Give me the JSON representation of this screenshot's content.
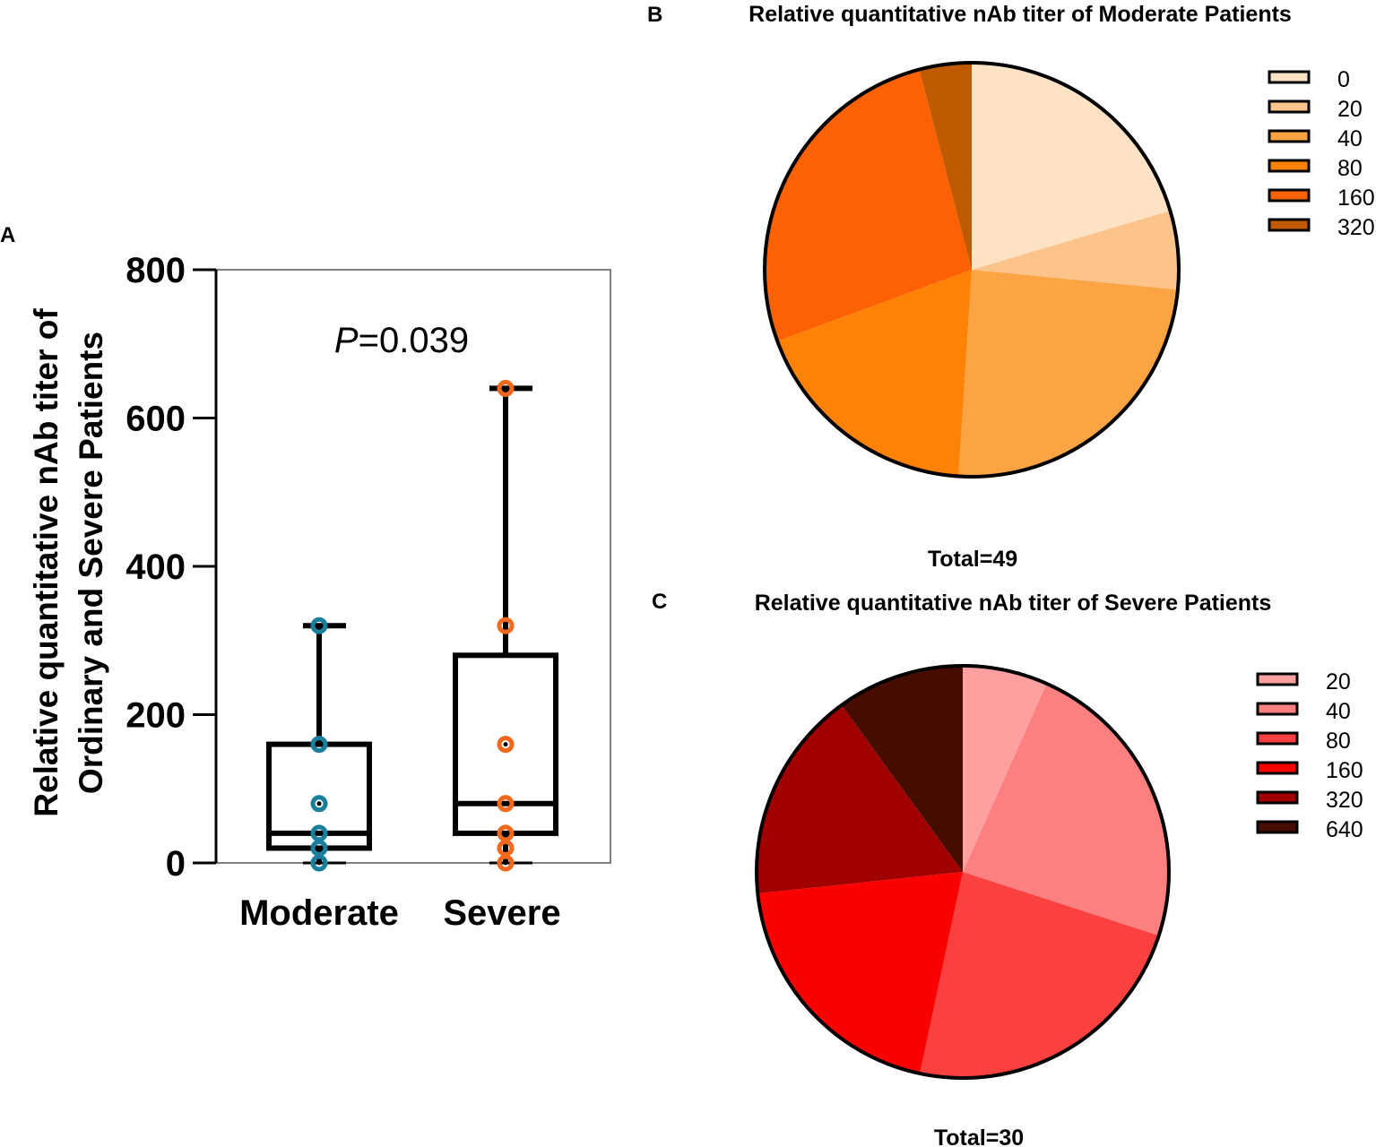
{
  "panels": {
    "a": "A",
    "b": "B",
    "c": "C"
  },
  "chart_data": [
    {
      "type": "box",
      "panel": "A",
      "ylabel": "Relative quantitative nAb titer of Ordinary and Severe Patients",
      "ylabel_lines": [
        "Relative quantitative nAb titer of",
        "Ordinary and Severe Patients"
      ],
      "annotation": {
        "prefix": "P",
        "value": "=0.039"
      },
      "ylim": [
        0,
        800
      ],
      "yticks": [
        0,
        200,
        400,
        600,
        800
      ],
      "categories": [
        "Moderate",
        "Severe"
      ],
      "colors": {
        "Moderate": "#1a7f9c",
        "Severe": "#f2681c"
      },
      "boxes": [
        {
          "name": "Moderate",
          "min": 0,
          "q1": 20,
          "median": 40,
          "q3": 160,
          "max": 320,
          "points": [
            0,
            20,
            40,
            80,
            160,
            320
          ]
        },
        {
          "name": "Severe",
          "min": 0,
          "q1": 40,
          "median": 80,
          "q3": 280,
          "max": 640,
          "points": [
            0,
            20,
            40,
            80,
            160,
            320,
            640
          ]
        }
      ]
    },
    {
      "type": "pie",
      "panel": "B",
      "title": "Relative quantitative nAb titer of Moderate Patients",
      "total_label": "Total=49",
      "labels": [
        "0",
        "20",
        "40",
        "80",
        "160",
        "320"
      ],
      "values": [
        10,
        3,
        12,
        9,
        13,
        2
      ],
      "colors": [
        "#fde2c4",
        "#fcc48b",
        "#fca444",
        "#fd8205",
        "#fc6204",
        "#c05a00"
      ]
    },
    {
      "type": "pie",
      "panel": "C",
      "title": "Relative quantitative nAb titer of Severe Patients",
      "total_label": "Total=30",
      "labels": [
        "20",
        "40",
        "80",
        "160",
        "320",
        "640"
      ],
      "values": [
        2,
        7,
        7,
        6,
        5,
        3
      ],
      "colors": [
        "#fea0a0",
        "#fd8080",
        "#fb4040",
        "#fc0000",
        "#a00000",
        "#460c00"
      ]
    }
  ]
}
